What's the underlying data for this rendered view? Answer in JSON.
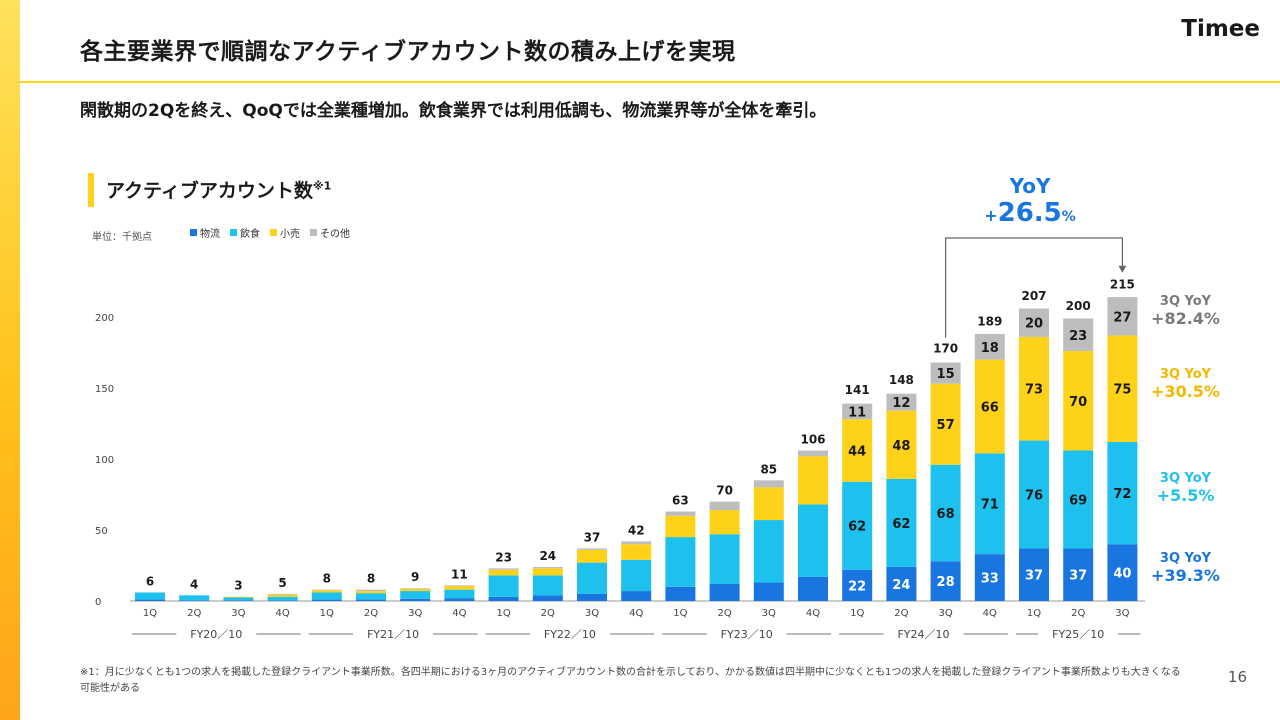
{
  "header": {
    "title": "各主要業界で順調なアクティブアカウント数の積み上げを実現",
    "logo": "Timee",
    "subtitle": "閑散期の2Qを終え、QoQでは全業種増加。飲食業界では利用低調も、物流業界等が全体を牽引。"
  },
  "section": {
    "title": "アクティブアカウント数",
    "footnote_mark": "※1"
  },
  "unit": "単位：千拠点",
  "yoy_total": {
    "label": "YoY",
    "sign": "+",
    "value": "26.5",
    "suffix": "%"
  },
  "segment_yoy": [
    {
      "label": "3Q YoY",
      "value": "+82.4%",
      "color": "#7a7a7a"
    },
    {
      "label": "3Q YoY",
      "value": "+30.5%",
      "color": "#f5b800"
    },
    {
      "label": "3Q YoY",
      "value": "+5.5%",
      "color": "#1ec0ee"
    },
    {
      "label": "3Q YoY",
      "value": "+39.3%",
      "color": "#1976e0"
    }
  ],
  "footnote": "※1：月に少なくとも1つの求人を掲載した登録クライアント事業所数。各四半期における3ヶ月のアクティブアカウント数の合計を示しており、かかる数値は四半期中に少なくとも1つの求人を掲載した登録クライアント事業所数よりも大きくなる可能性がある",
  "page_number": "16",
  "chart_data": {
    "type": "bar",
    "stacked": true,
    "categories": [
      "1Q",
      "2Q",
      "3Q",
      "4Q",
      "1Q",
      "2Q",
      "3Q",
      "4Q",
      "1Q",
      "2Q",
      "3Q",
      "4Q",
      "1Q",
      "2Q",
      "3Q",
      "4Q",
      "1Q",
      "2Q",
      "3Q",
      "4Q",
      "1Q",
      "2Q",
      "3Q"
    ],
    "fiscal_years": [
      {
        "label": "FY20／10",
        "count": 4
      },
      {
        "label": "FY21／10",
        "count": 4
      },
      {
        "label": "FY22／10",
        "count": 4
      },
      {
        "label": "FY23／10",
        "count": 4
      },
      {
        "label": "FY24／10",
        "count": 4
      },
      {
        "label": "FY25／10",
        "count": 3
      }
    ],
    "totals": [
      6,
      4,
      3,
      5,
      8,
      8,
      9,
      11,
      23,
      24,
      37,
      42,
      63,
      70,
      85,
      106,
      141,
      148,
      170,
      189,
      207,
      200,
      215
    ],
    "series": [
      {
        "name": "物流",
        "color": "#1976e0",
        "values": [
          1,
          0.5,
          0.5,
          0.5,
          1,
          1,
          1.5,
          2,
          3,
          4,
          5,
          7,
          10,
          12,
          13,
          17,
          22,
          24,
          28,
          33,
          37,
          37,
          40
        ]
      },
      {
        "name": "飲食",
        "color": "#1ec0ee",
        "values": [
          5,
          3.5,
          2,
          2.5,
          5,
          4.5,
          5.5,
          6,
          15,
          14,
          22,
          22,
          35,
          35,
          44,
          51,
          62,
          62,
          68,
          71,
          76,
          69,
          72
        ]
      },
      {
        "name": "小売",
        "color": "#ffd21a",
        "values": [
          0,
          0,
          0.5,
          1.5,
          1.5,
          1.5,
          1.5,
          2.5,
          4,
          5,
          9,
          11,
          15,
          17,
          23,
          34,
          44,
          48,
          57,
          66,
          73,
          70,
          75
        ]
      },
      {
        "name": "その他",
        "color": "#bdbdbd",
        "values": [
          0,
          0,
          0,
          0.5,
          0.5,
          1,
          0.5,
          0.5,
          1,
          1,
          1,
          2,
          3,
          6,
          5,
          4,
          11,
          12,
          15,
          18,
          20,
          23,
          27
        ]
      }
    ],
    "shown_segment_labels_from_index": 16,
    "yticks": [
      0,
      50,
      100,
      150,
      200
    ],
    "ylim": [
      0,
      215
    ],
    "legend_position": "top-left",
    "grid": false
  }
}
